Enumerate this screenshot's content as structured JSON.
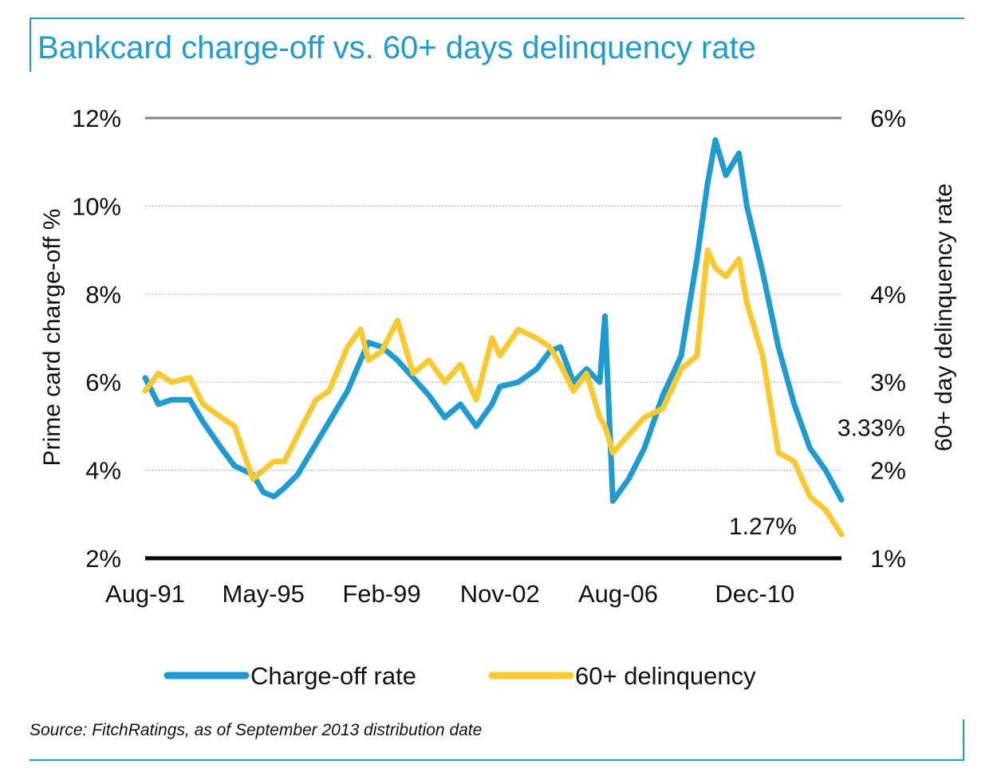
{
  "title": "Bankcard charge-off vs. 60+ days delinquency rate",
  "source": "Source: FitchRatings, as of September 2013 distribution date",
  "chart_data": {
    "type": "line",
    "title": "Bankcard charge-off vs. 60+ days delinquency rate",
    "ylabel_left": "Prime card charge-off %",
    "ylabel_right": "60+ day delinquency rate",
    "ylim_left": [
      2,
      12
    ],
    "ylim_right": [
      1,
      6
    ],
    "y_ticks_left": [
      "2%",
      "4%",
      "6%",
      "8%",
      "10%",
      "12%"
    ],
    "y_ticks_right": [
      "1%",
      "2%",
      "3%",
      "4%",
      "6%"
    ],
    "x_range": [
      "1991-08",
      "2013-09"
    ],
    "x_ticks": [
      {
        "label": "Aug-91",
        "date": "1991-08"
      },
      {
        "label": "May-95",
        "date": "1995-05"
      },
      {
        "label": "Feb-99",
        "date": "1999-02"
      },
      {
        "label": "Nov-02",
        "date": "2002-11"
      },
      {
        "label": "Aug-06",
        "date": "2006-08"
      },
      {
        "label": "Dec-10",
        "date": "2010-12"
      }
    ],
    "grid": true,
    "legend_position": "bottom",
    "colors": {
      "chargeoff": "#1f9bd0",
      "delinquency": "#f9c932",
      "grid": "#aaaaaa",
      "top_line": "#808080",
      "baseline": "#000000"
    },
    "annotations": [
      {
        "text": "3.33%",
        "series": "Charge-off rate"
      },
      {
        "text": "1.27%",
        "series": "60+ delinquency"
      }
    ],
    "series": [
      {
        "name": "Charge-off rate",
        "axis": "left",
        "points": [
          [
            "1991-08",
            6.1
          ],
          [
            "1992-01",
            5.5
          ],
          [
            "1992-06",
            5.6
          ],
          [
            "1993-01",
            5.6
          ],
          [
            "1993-06",
            5.1
          ],
          [
            "1994-01",
            4.5
          ],
          [
            "1994-06",
            4.1
          ],
          [
            "1995-01",
            3.9
          ],
          [
            "1995-05",
            3.5
          ],
          [
            "1995-09",
            3.4
          ],
          [
            "1996-01",
            3.6
          ],
          [
            "1996-06",
            3.9
          ],
          [
            "1997-01",
            4.6
          ],
          [
            "1997-06",
            5.1
          ],
          [
            "1998-01",
            5.8
          ],
          [
            "1998-06",
            6.5
          ],
          [
            "1998-09",
            6.9
          ],
          [
            "1999-02",
            6.8
          ],
          [
            "1999-08",
            6.5
          ],
          [
            "2000-02",
            6.1
          ],
          [
            "2000-08",
            5.7
          ],
          [
            "2001-02",
            5.2
          ],
          [
            "2001-08",
            5.5
          ],
          [
            "2002-02",
            5.0
          ],
          [
            "2002-08",
            5.5
          ],
          [
            "2002-11",
            5.9
          ],
          [
            "2003-06",
            6.0
          ],
          [
            "2004-01",
            6.3
          ],
          [
            "2004-06",
            6.7
          ],
          [
            "2004-10",
            6.8
          ],
          [
            "2005-03",
            6.0
          ],
          [
            "2005-08",
            6.3
          ],
          [
            "2006-01",
            6.0
          ],
          [
            "2006-03",
            7.5
          ],
          [
            "2006-06",
            3.3
          ],
          [
            "2006-12",
            3.8
          ],
          [
            "2007-06",
            4.5
          ],
          [
            "2008-01",
            5.7
          ],
          [
            "2008-08",
            6.6
          ],
          [
            "2009-02",
            8.8
          ],
          [
            "2009-06",
            10.5
          ],
          [
            "2009-09",
            11.5
          ],
          [
            "2010-01",
            10.7
          ],
          [
            "2010-06",
            11.2
          ],
          [
            "2010-09",
            10.0
          ],
          [
            "2011-03",
            8.5
          ],
          [
            "2011-09",
            6.8
          ],
          [
            "2012-03",
            5.5
          ],
          [
            "2012-09",
            4.5
          ],
          [
            "2013-03",
            4.0
          ],
          [
            "2013-09",
            3.33
          ]
        ]
      },
      {
        "name": "60+ delinquency",
        "axis": "right",
        "points": [
          [
            "1991-08",
            2.9
          ],
          [
            "1992-01",
            3.1
          ],
          [
            "1992-06",
            3.0
          ],
          [
            "1993-01",
            3.05
          ],
          [
            "1993-06",
            2.75
          ],
          [
            "1994-01",
            2.6
          ],
          [
            "1994-06",
            2.5
          ],
          [
            "1995-01",
            1.9
          ],
          [
            "1995-05",
            2.0
          ],
          [
            "1995-09",
            2.1
          ],
          [
            "1996-01",
            2.1
          ],
          [
            "1996-06",
            2.4
          ],
          [
            "1997-01",
            2.8
          ],
          [
            "1997-06",
            2.9
          ],
          [
            "1998-01",
            3.4
          ],
          [
            "1998-06",
            3.6
          ],
          [
            "1998-09",
            3.25
          ],
          [
            "1999-02",
            3.35
          ],
          [
            "1999-08",
            3.7
          ],
          [
            "2000-02",
            3.1
          ],
          [
            "2000-08",
            3.25
          ],
          [
            "2001-02",
            3.0
          ],
          [
            "2001-08",
            3.2
          ],
          [
            "2002-02",
            2.8
          ],
          [
            "2002-08",
            3.5
          ],
          [
            "2002-11",
            3.3
          ],
          [
            "2003-06",
            3.6
          ],
          [
            "2004-01",
            3.5
          ],
          [
            "2004-06",
            3.4
          ],
          [
            "2004-10",
            3.2
          ],
          [
            "2005-03",
            2.9
          ],
          [
            "2005-08",
            3.1
          ],
          [
            "2006-01",
            2.6
          ],
          [
            "2006-03",
            2.5
          ],
          [
            "2006-06",
            2.2
          ],
          [
            "2006-12",
            2.4
          ],
          [
            "2007-06",
            2.6
          ],
          [
            "2008-01",
            2.7
          ],
          [
            "2008-08",
            3.15
          ],
          [
            "2009-02",
            3.3
          ],
          [
            "2009-06",
            4.5
          ],
          [
            "2009-09",
            4.3
          ],
          [
            "2010-01",
            4.2
          ],
          [
            "2010-06",
            4.4
          ],
          [
            "2010-09",
            3.9
          ],
          [
            "2011-03",
            3.3
          ],
          [
            "2011-09",
            2.2
          ],
          [
            "2012-03",
            2.1
          ],
          [
            "2012-09",
            1.7
          ],
          [
            "2013-03",
            1.55
          ],
          [
            "2013-09",
            1.27
          ]
        ]
      }
    ],
    "legend": [
      {
        "label": "Charge-off rate",
        "series": "Charge-off rate"
      },
      {
        "label": "60+ delinquency",
        "series": "60+ delinquency"
      }
    ]
  }
}
